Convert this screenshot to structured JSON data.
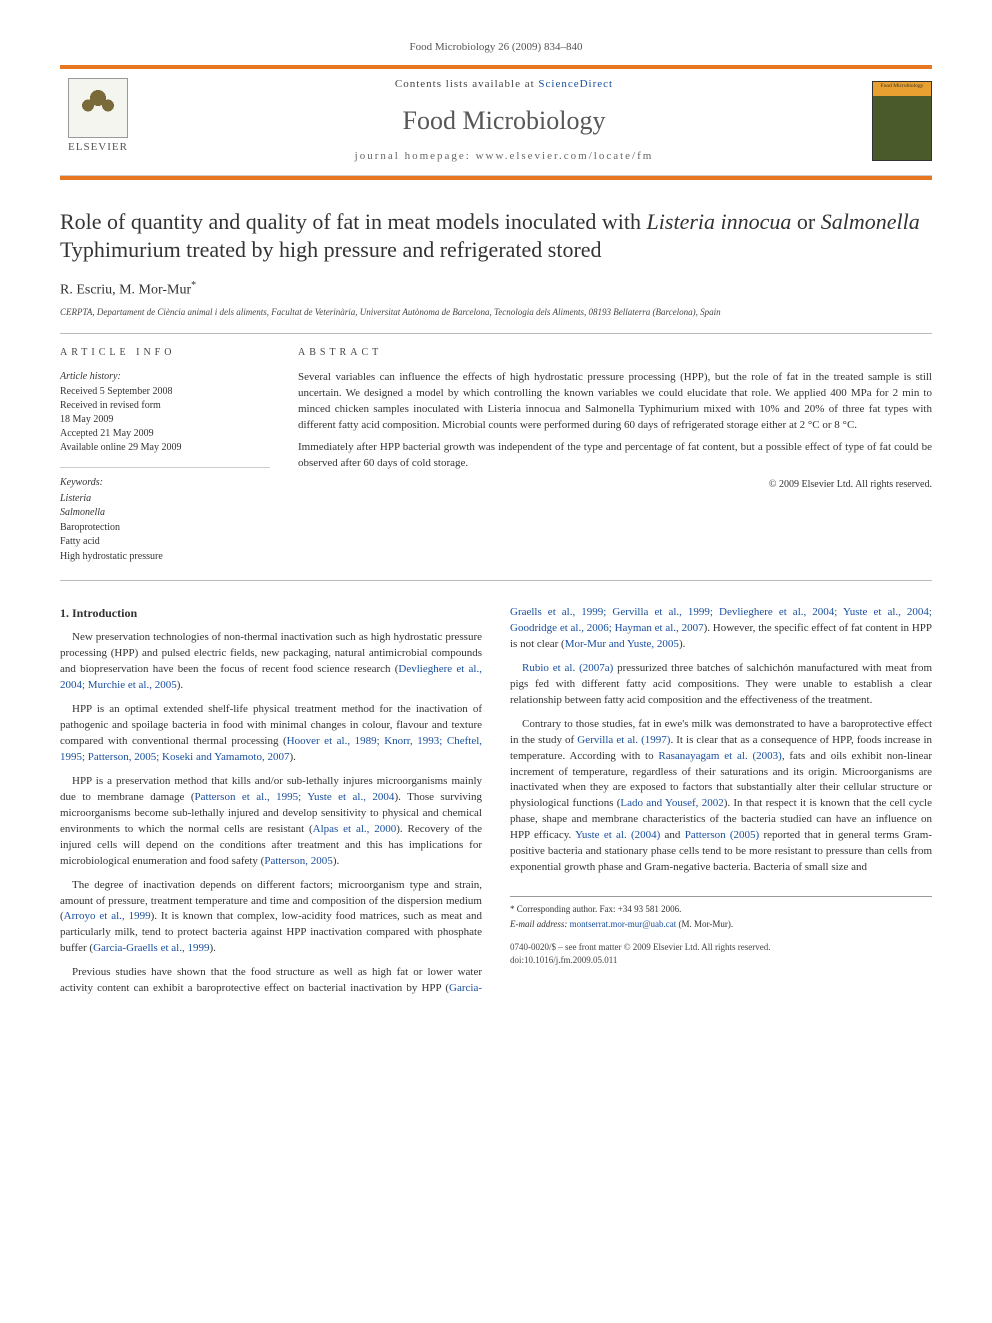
{
  "citation": "Food Microbiology 26 (2009) 834–840",
  "header": {
    "contents_prefix": "Contents lists available at ",
    "contents_link": "ScienceDirect",
    "journal": "Food Microbiology",
    "homepage_prefix": "journal homepage: ",
    "homepage_url": "www.elsevier.com/locate/fm",
    "publisher": "ELSEVIER",
    "cover_label": "Food Microbiology"
  },
  "title_html": "Role of quantity and quality of fat in meat models inoculated with <em>Listeria innocua</em> or <em>Salmonella</em> Typhimurium treated by high pressure and refrigerated stored",
  "authors": "R. Escriu, M. Mor-Mur",
  "corr_marker": "*",
  "affiliation": "CERPTA, Departament de Ciència animal i dels aliments, Facultat de Veterinària, Universitat Autònoma de Barcelona, Tecnologia dels Aliments, 08193 Bellaterra (Barcelona), Spain",
  "info": {
    "heading": "ARTICLE INFO",
    "history_label": "Article history:",
    "history": [
      "Received 5 September 2008",
      "Received in revised form",
      "18 May 2009",
      "Accepted 21 May 2009",
      "Available online 29 May 2009"
    ],
    "kw_label": "Keywords:",
    "keywords": [
      "Listeria",
      "Salmonella",
      "Baroprotection",
      "Fatty acid",
      "High hydrostatic pressure"
    ]
  },
  "abstract": {
    "heading": "ABSTRACT",
    "p1": "Several variables can influence the effects of high hydrostatic pressure processing (HPP), but the role of fat in the treated sample is still uncertain. We designed a model by which controlling the known variables we could elucidate that role. We applied 400 MPa for 2 min to minced chicken samples inoculated with Listeria innocua and Salmonella Typhimurium mixed with 10% and 20% of three fat types with different fatty acid composition. Microbial counts were performed during 60 days of refrigerated storage either at 2 °C or 8 °C.",
    "p2": "Immediately after HPP bacterial growth was independent of the type and percentage of fat content, but a possible effect of type of fat could be observed after 60 days of cold storage.",
    "copyright": "© 2009 Elsevier Ltd. All rights reserved."
  },
  "sections": {
    "intro_heading": "1. Introduction",
    "paragraphs": [
      "New preservation technologies of non-thermal inactivation such as high hydrostatic pressure processing (HPP) and pulsed electric fields, new packaging, natural antimicrobial compounds and biopreservation have been the focus of recent food science research (<span class=\"cite\">Devlieghere et al., 2004; Murchie et al., 2005</span>).",
      "HPP is an optimal extended shelf-life physical treatment method for the inactivation of pathogenic and spoilage bacteria in food with minimal changes in colour, flavour and texture compared with conventional thermal processing (<span class=\"cite\">Hoover et al., 1989; Knorr, 1993; Cheftel, 1995; Patterson, 2005; Koseki and Yamamoto, 2007</span>).",
      "HPP is a preservation method that kills and/or sub-lethally injures microorganisms mainly due to membrane damage (<span class=\"cite\">Patterson et al., 1995; Yuste et al., 2004</span>). Those surviving microorganisms become sub-lethally injured and develop sensitivity to physical and chemical environments to which the normal cells are resistant (<span class=\"cite\">Alpas et al., 2000</span>). Recovery of the injured cells will depend on the conditions after treatment and this has implications for microbiological enumeration and food safety (<span class=\"cite\">Patterson, 2005</span>).",
      "The degree of inactivation depends on different factors; microorganism type and strain, amount of pressure, treatment temperature and time and composition of the dispersion medium (<span class=\"cite\">Arroyo et al., 1999</span>). It is known that complex, low-acidity food matrices, such as meat and particularly milk, tend to protect bacteria against HPP inactivation compared with phosphate buffer (<span class=\"cite\">Garcia-Graells et al., 1999</span>).",
      "Previous studies have shown that the food structure as well as high fat or lower water activity content can exhibit a baroprotective effect on bacterial inactivation by HPP (<span class=\"cite\">Garcia-Graells et al., 1999; Gervilla et al., 1999; Devlieghere et al., 2004; Yuste et al., 2004; Goodridge et al., 2006; Hayman et al., 2007</span>). However, the specific effect of fat content in HPP is not clear (<span class=\"cite\">Mor-Mur and Yuste, 2005</span>).",
      "<span class=\"cite\">Rubio et al. (2007a)</span> pressurized three batches of salchichón manufactured with meat from pigs fed with different fatty acid compositions. They were unable to establish a clear relationship between fatty acid composition and the effectiveness of the treatment.",
      "Contrary to those studies, fat in ewe's milk was demonstrated to have a baroprotective effect in the study of <span class=\"cite\">Gervilla et al. (1997)</span>. It is clear that as a consequence of HPP, foods increase in temperature. According with to <span class=\"cite\">Rasanayagam et al. (2003)</span>, fats and oils exhibit non-linear increment of temperature, regardless of their saturations and its origin. Microorganisms are inactivated when they are exposed to factors that substantially alter their cellular structure or physiological functions (<span class=\"cite\">Lado and Yousef, 2002</span>). In that respect it is known that the cell cycle phase, shape and membrane characteristics of the bacteria studied can have an influence on HPP efficacy. <span class=\"cite\">Yuste et al. (2004)</span> and <span class=\"cite\">Patterson (2005)</span> reported that in general terms Gram-positive bacteria and stationary phase cells tend to be more resistant to pressure than cells from exponential growth phase and Gram-negative bacteria. Bacteria of small size and"
    ]
  },
  "footer": {
    "corr": "* Corresponding author. Fax: +34 93 581 2006.",
    "email_label": "E-mail address: ",
    "email": "montserrat.mor-mur@uab.cat",
    "email_suffix": " (M. Mor-Mur).",
    "front_matter": "0740-0020/$ – see front matter © 2009 Elsevier Ltd. All rights reserved.",
    "doi": "doi:10.1016/j.fm.2009.05.011"
  },
  "colors": {
    "orange": "#e87722",
    "link": "#1a4f9c",
    "text": "#333333"
  }
}
